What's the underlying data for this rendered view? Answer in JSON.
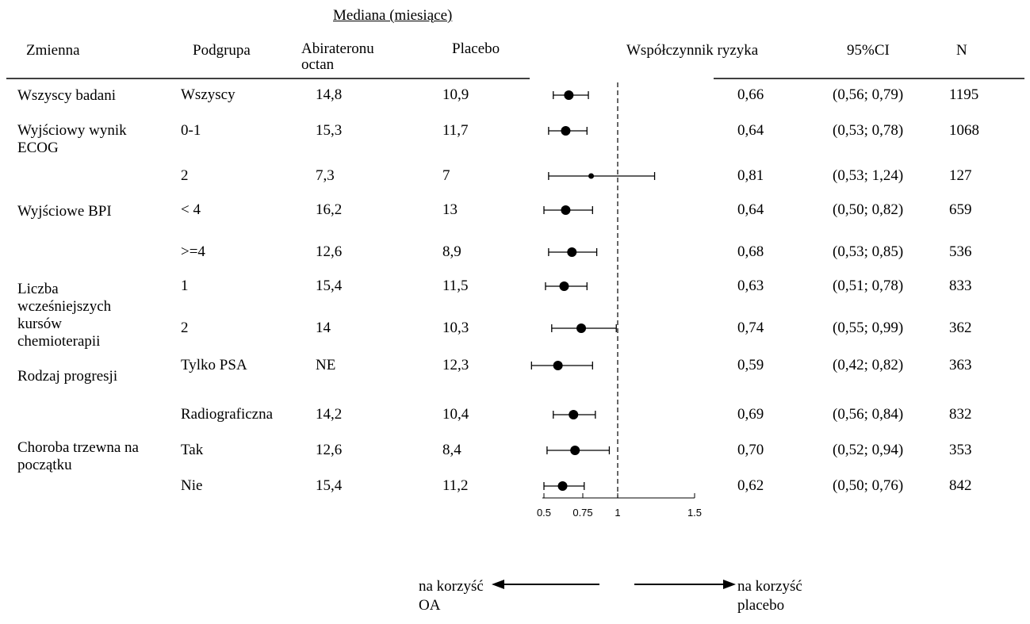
{
  "chart_data": {
    "type": "forest",
    "header": {
      "median_group": "Mediana (miesiące)",
      "col_variable": "Zmienna",
      "col_subgroup": "Podgrupa",
      "col_abiraterone": "Abirateronu octan",
      "col_placebo": "Placebo",
      "col_hr": "Współczynnik ryzyka",
      "col_ci": "95%CI",
      "col_n": "N"
    },
    "variables": [
      {
        "label": "Wszyscy badani"
      },
      {
        "label": "Wyjściowy wynik ECOG"
      },
      {
        "label": "Wyjściowe BPI"
      },
      {
        "label": "Liczba wcześniejszych kursów chemioterapii"
      },
      {
        "label": "Rodzaj progresji"
      },
      {
        "label": "Choroba trzewna na początku"
      }
    ],
    "rows": [
      {
        "subgroup": "Wszyscy",
        "abiraterone": "14,8",
        "placebo": "10,9",
        "hr": 0.66,
        "hr_text": "0,66",
        "ci_low": 0.56,
        "ci_high": 0.79,
        "ci_text": "(0,56; 0,79)",
        "n": "1195"
      },
      {
        "subgroup": "0-1",
        "abiraterone": "15,3",
        "placebo": "11,7",
        "hr": 0.64,
        "hr_text": "0,64",
        "ci_low": 0.53,
        "ci_high": 0.78,
        "ci_text": "(0,53; 0,78)",
        "n": "1068"
      },
      {
        "subgroup": "2",
        "abiraterone": "7,3",
        "placebo": "7",
        "hr": 0.81,
        "hr_text": "0,81",
        "ci_low": 0.53,
        "ci_high": 1.24,
        "ci_text": "(0,53; 1,24)",
        "n": "127"
      },
      {
        "subgroup": "< 4",
        "abiraterone": "16,2",
        "placebo": "13",
        "hr": 0.64,
        "hr_text": "0,64",
        "ci_low": 0.5,
        "ci_high": 0.82,
        "ci_text": "(0,50; 0,82)",
        "n": "659"
      },
      {
        "subgroup": ">=4",
        "abiraterone": "12,6",
        "placebo": "8,9",
        "hr": 0.68,
        "hr_text": "0,68",
        "ci_low": 0.53,
        "ci_high": 0.85,
        "ci_text": "(0,53; 0,85)",
        "n": "536"
      },
      {
        "subgroup": "1",
        "abiraterone": "15,4",
        "placebo": "11,5",
        "hr": 0.63,
        "hr_text": "0,63",
        "ci_low": 0.51,
        "ci_high": 0.78,
        "ci_text": "(0,51; 0,78)",
        "n": "833"
      },
      {
        "subgroup": "2",
        "abiraterone": "14",
        "placebo": "10,3",
        "hr": 0.74,
        "hr_text": "0,74",
        "ci_low": 0.55,
        "ci_high": 0.99,
        "ci_text": "(0,55; 0,99)",
        "n": "362"
      },
      {
        "subgroup": "Tylko PSA",
        "abiraterone": "NE",
        "placebo": "12,3",
        "hr": 0.59,
        "hr_text": "0,59",
        "ci_low": 0.42,
        "ci_high": 0.82,
        "ci_text": "(0,42; 0,82)",
        "n": "363"
      },
      {
        "subgroup": "Radiograficzna",
        "abiraterone": "14,2",
        "placebo": "10,4",
        "hr": 0.69,
        "hr_text": "0,69",
        "ci_low": 0.56,
        "ci_high": 0.84,
        "ci_text": "(0,56; 0,84)",
        "n": "832"
      },
      {
        "subgroup": "Tak",
        "abiraterone": "12,6",
        "placebo": "8,4",
        "hr": 0.7,
        "hr_text": "0,70",
        "ci_low": 0.52,
        "ci_high": 0.94,
        "ci_text": "(0,52; 0,94)",
        "n": "353"
      },
      {
        "subgroup": "Nie",
        "abiraterone": "15,4",
        "placebo": "11,2",
        "hr": 0.62,
        "hr_text": "0,62",
        "ci_low": 0.5,
        "ci_high": 0.76,
        "ci_text": "(0,50; 0,76)",
        "n": "842"
      }
    ],
    "x_axis": {
      "ticks": [
        0.5,
        0.75,
        1,
        1.5
      ],
      "tick_labels": [
        "0.5",
        "0.75",
        "1",
        "1.5"
      ],
      "reference_line": 1,
      "xlim": [
        0.5,
        1.5
      ]
    },
    "legend": {
      "left": "na korzyść OA",
      "right": "na korzyść placebo"
    }
  }
}
